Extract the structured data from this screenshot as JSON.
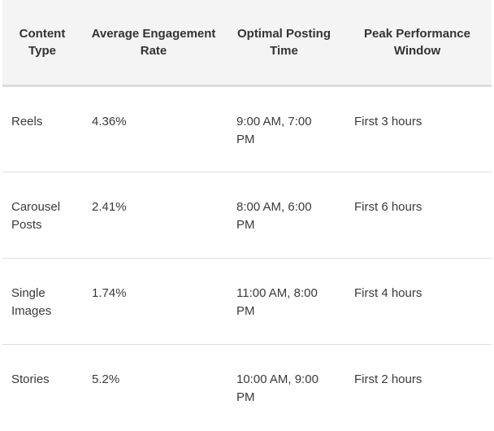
{
  "table": {
    "headers": [
      "Content Type",
      "Average Engagement Rate",
      "Optimal Posting Time",
      "Peak Performance Window"
    ],
    "rows": [
      [
        "Reels",
        "4.36%",
        "9:00 AM, 7:00 PM",
        "First 3 hours"
      ],
      [
        "Carousel Posts",
        "2.41%",
        "8:00 AM, 6:00 PM",
        "First 6 hours"
      ],
      [
        "Single Images",
        "1.74%",
        "11:00 AM, 8:00 PM",
        "First 4 hours"
      ],
      [
        "Stories",
        "5.2%",
        "10:00 AM, 9:00 PM",
        "First 2 hours"
      ]
    ]
  }
}
